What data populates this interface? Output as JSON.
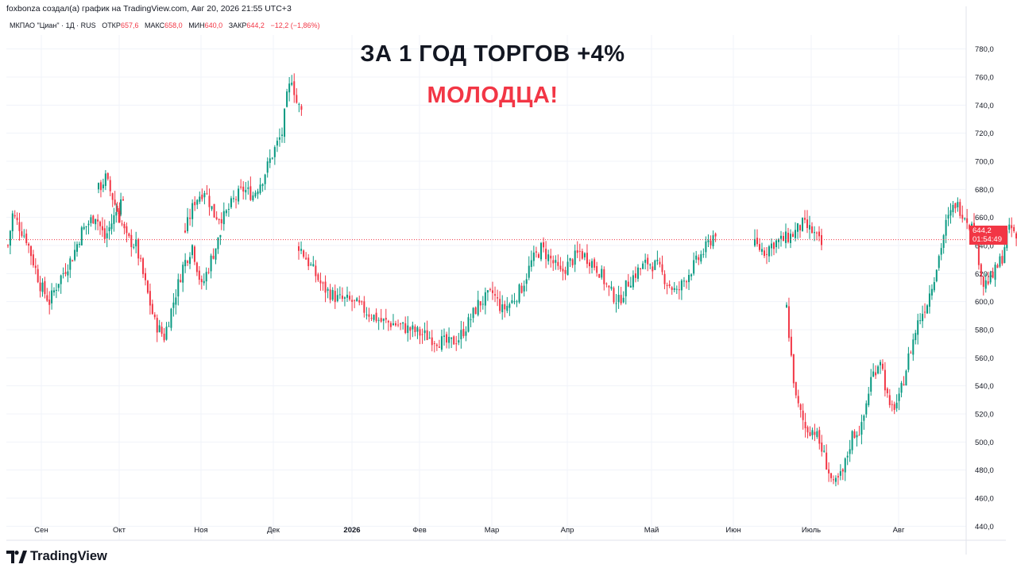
{
  "caption": "foxbonza создал(а) график на TradingView.com, Авг 20, 2026 21:55 UTC+3",
  "legend": {
    "symbol": "МКПАО \"Циан\" · 1Д · RUS",
    "open_label": "ОТКР",
    "open": "657,6",
    "high_label": "МАКС",
    "high": "658,0",
    "low_label": "МИН",
    "low": "640,0",
    "close_label": "ЗАКР",
    "close": "644,2",
    "change": "−12,2 (−1,86%)"
  },
  "headline": {
    "line1": "ЗА 1 ГОД ТОРГОВ +4%",
    "line2": "МОЛОДЦА!"
  },
  "price_tag": {
    "price": "644,2",
    "countdown": "01:54:49"
  },
  "brand": {
    "name": "TradingView",
    "logo_icon": "tradingview-logo-icon"
  },
  "colors": {
    "up": "#089981",
    "down": "#f23645",
    "grid": "#f0f3fa",
    "text": "#131722",
    "last_price": "#f23645"
  },
  "chart_data": {
    "type": "candlestick",
    "ylim": [
      430,
      790
    ],
    "y_ticks": [
      "780,0",
      "760,0",
      "740,0",
      "720,0",
      "700,0",
      "680,0",
      "660,0",
      "640,0",
      "620,0",
      "600,0",
      "580,0",
      "560,0",
      "540,0",
      "520,0",
      "500,0",
      "480,0",
      "460,0",
      "440,0"
    ],
    "y_tick_values": [
      780,
      760,
      740,
      720,
      700,
      680,
      660,
      640,
      620,
      600,
      580,
      560,
      540,
      520,
      500,
      480,
      460,
      440
    ],
    "x_ticks": [
      "Сен",
      "Окт",
      "Ноя",
      "Дек",
      "2026",
      "Фев",
      "Мар",
      "Апр",
      "Май",
      "Июн",
      "Июль",
      "Авг"
    ],
    "x_tick_bold": [
      false,
      false,
      false,
      false,
      true,
      false,
      false,
      false,
      false,
      false,
      false,
      false
    ],
    "last_price": 644.2,
    "segments": [
      {
        "label": "Сен",
        "anchors": [
          [
            0,
            640
          ],
          [
            2,
            662
          ],
          [
            8,
            645
          ],
          [
            14,
            612
          ],
          [
            18,
            600
          ],
          [
            22,
            615
          ],
          [
            28,
            632
          ],
          [
            32,
            650
          ],
          [
            38,
            662
          ],
          [
            42,
            645
          ],
          [
            46,
            660
          ],
          [
            50,
            675
          ]
        ]
      },
      {
        "label": "Окт",
        "anchors": [
          [
            0,
            680
          ],
          [
            3,
            688
          ],
          [
            8,
            665
          ],
          [
            12,
            645
          ],
          [
            16,
            640
          ],
          [
            20,
            612
          ],
          [
            24,
            585
          ],
          [
            28,
            575
          ],
          [
            32,
            600
          ],
          [
            36,
            625
          ],
          [
            40,
            640
          ],
          [
            44,
            610
          ],
          [
            48,
            630
          ],
          [
            52,
            648
          ]
        ]
      },
      {
        "label": "Ноя",
        "anchors": [
          [
            0,
            650
          ],
          [
            4,
            672
          ],
          [
            8,
            680
          ],
          [
            12,
            662
          ],
          [
            16,
            660
          ],
          [
            20,
            672
          ],
          [
            24,
            680
          ],
          [
            28,
            676
          ],
          [
            32,
            688
          ],
          [
            36,
            705
          ],
          [
            40,
            720
          ],
          [
            42,
            745
          ],
          [
            44,
            760
          ],
          [
            46,
            742
          ],
          [
            48,
            735
          ]
        ]
      },
      {
        "label": "Дек",
        "anchors": []
      },
      {
        "label": "2026",
        "anchors": [
          [
            0,
            640
          ],
          [
            4,
            628
          ],
          [
            10,
            610
          ],
          [
            16,
            602
          ],
          [
            22,
            600
          ],
          [
            28,
            593
          ],
          [
            34,
            586
          ],
          [
            40,
            584
          ],
          [
            46,
            580
          ],
          [
            52,
            576
          ],
          [
            58,
            572
          ],
          [
            62,
            570
          ],
          [
            66,
            574
          ],
          [
            70,
            585
          ],
          [
            74,
            598
          ],
          [
            80,
            606
          ],
          [
            84,
            594
          ],
          [
            88,
            600
          ],
          [
            92,
            610
          ],
          [
            96,
            628
          ],
          [
            100,
            638
          ],
          [
            104,
            630
          ],
          [
            108,
            620
          ],
          [
            112,
            628
          ],
          [
            116,
            635
          ],
          [
            120,
            630
          ],
          [
            124,
            622
          ],
          [
            128,
            608
          ],
          [
            132,
            600
          ],
          [
            136,
            614
          ],
          [
            140,
            622
          ],
          [
            144,
            628
          ],
          [
            148,
            625
          ],
          [
            152,
            614
          ],
          [
            156,
            606
          ],
          [
            160,
            618
          ],
          [
            164,
            628
          ],
          [
            168,
            638
          ],
          [
            172,
            650
          ]
        ]
      },
      {
        "label": "Июн",
        "anchors": [
          [
            0,
            640
          ],
          [
            4,
            636
          ],
          [
            8,
            642
          ],
          [
            12,
            644
          ],
          [
            16,
            648
          ],
          [
            20,
            655
          ],
          [
            24,
            650
          ],
          [
            28,
            640
          ]
        ]
      },
      {
        "label": "Июль",
        "anchors": [
          [
            0,
            595
          ],
          [
            2,
            560
          ],
          [
            4,
            530
          ],
          [
            8,
            510
          ],
          [
            12,
            508
          ],
          [
            16,
            490
          ],
          [
            20,
            468
          ],
          [
            24,
            478
          ],
          [
            28,
            505
          ],
          [
            32,
            510
          ],
          [
            36,
            545
          ],
          [
            40,
            560
          ],
          [
            44,
            522
          ],
          [
            48,
            530
          ],
          [
            52,
            560
          ],
          [
            56,
            585
          ],
          [
            60,
            600
          ],
          [
            64,
            625
          ],
          [
            68,
            655
          ],
          [
            72,
            670
          ],
          [
            76,
            662
          ],
          [
            80,
            650
          ],
          [
            84,
            612
          ],
          [
            88,
            618
          ],
          [
            90,
            625
          ],
          [
            92,
            632
          ],
          [
            94,
            648
          ],
          [
            96,
            652
          ],
          [
            98,
            644
          ]
        ]
      }
    ]
  }
}
